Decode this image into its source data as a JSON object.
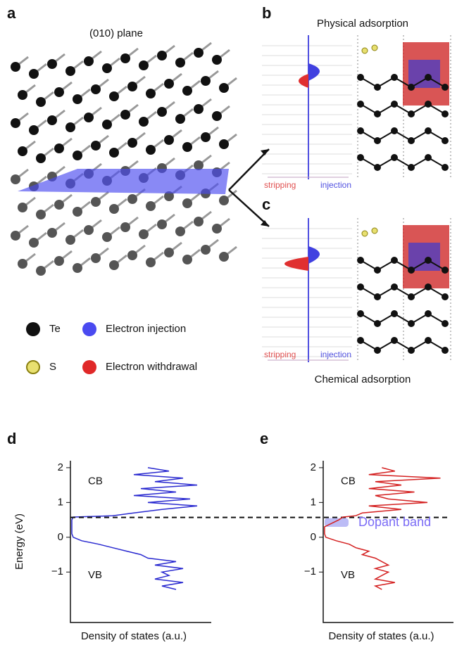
{
  "figure": {
    "panel_a": {
      "letter": "a",
      "plane": "(010) plane",
      "legend": {
        "te": "Te",
        "s": "S",
        "injection": "Electron injection",
        "withdrawal": "Electron withdrawal"
      }
    },
    "panel_b": {
      "letter": "b",
      "title": "Physical adsorption",
      "left": "stripping",
      "right": "injection"
    },
    "panel_c": {
      "letter": "c",
      "title": "Chemical adsorption",
      "left": "stripping",
      "right": "injection"
    }
  },
  "chart_data": [
    {
      "type": "line",
      "letter": "d",
      "ylabel": "Energy (eV)",
      "xlabel": "Density of states (a.u.)",
      "annotations": [
        "CB",
        "VB"
      ],
      "color": "#2a2ad0",
      "ylim": [
        -2.45,
        2.2
      ],
      "yticks": [
        2,
        1,
        0,
        {
          "value": -1,
          "label": "−1"
        }
      ],
      "xlim": [
        0,
        1
      ],
      "y": [
        2.0,
        1.9,
        1.8,
        1.7,
        1.6,
        1.5,
        1.4,
        1.3,
        1.2,
        1.1,
        1.0,
        0.9,
        0.8,
        0.7,
        0.62,
        0.58,
        0.5,
        0.3,
        0.1,
        0.0,
        -0.1,
        -0.2,
        -0.3,
        -0.4,
        -0.5,
        -0.6,
        -0.7,
        -0.8,
        -0.9,
        -1.0,
        -1.1,
        -1.2,
        -1.3,
        -1.4,
        -1.5
      ],
      "x": [
        0.55,
        0.7,
        0.45,
        0.8,
        0.6,
        0.9,
        0.5,
        0.75,
        0.45,
        0.85,
        0.55,
        0.9,
        0.65,
        0.45,
        0.3,
        0.02,
        0.01,
        0.01,
        0.01,
        0.02,
        0.08,
        0.2,
        0.3,
        0.4,
        0.5,
        0.55,
        0.75,
        0.6,
        0.8,
        0.65,
        0.7,
        0.6,
        0.8,
        0.65,
        0.75
      ],
      "fermi": 0.57
    },
    {
      "type": "line",
      "letter": "e",
      "xlabel": "Density of states (a.u.)",
      "annotations": [
        "CB",
        "VB",
        "Dopant band"
      ],
      "color": "#d42020",
      "ylim": [
        -2.45,
        2.2
      ],
      "yticks": [
        2,
        1,
        0,
        {
          "value": -1,
          "label": "−1"
        }
      ],
      "xlim": [
        0,
        1
      ],
      "y": [
        2.0,
        1.9,
        1.8,
        1.7,
        1.6,
        1.5,
        1.4,
        1.3,
        1.2,
        1.1,
        1.0,
        0.9,
        0.8,
        0.7,
        0.62,
        0.58,
        0.5,
        0.3,
        0.1,
        0.0,
        -0.1,
        -0.2,
        -0.3,
        -0.4,
        -0.5,
        -0.6,
        -0.7,
        -0.8,
        -0.9,
        -1.0,
        -1.1,
        -1.2,
        -1.3,
        -1.4,
        -1.5
      ],
      "x": [
        0.45,
        0.55,
        0.35,
        0.9,
        0.4,
        0.6,
        0.35,
        0.7,
        0.4,
        0.5,
        0.8,
        0.35,
        0.6,
        0.3,
        0.25,
        0.15,
        0.12,
        0.01,
        0.01,
        0.02,
        0.1,
        0.2,
        0.25,
        0.35,
        0.3,
        0.4,
        0.45,
        0.5,
        0.4,
        0.5,
        0.45,
        0.4,
        0.55,
        0.4,
        0.45
      ],
      "fermi": 0.57
    }
  ]
}
